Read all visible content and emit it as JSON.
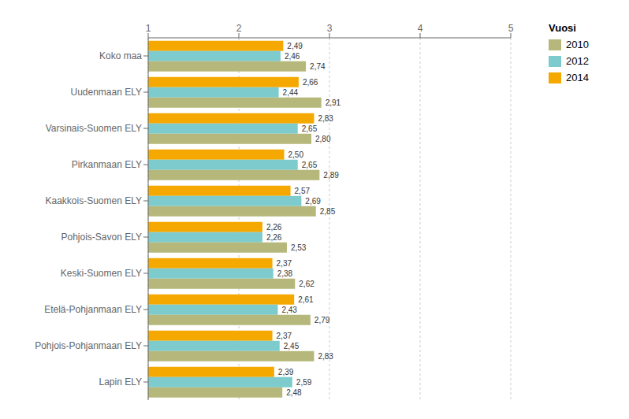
{
  "chart_data": {
    "type": "bar",
    "orientation": "horizontal",
    "categories": [
      "Koko maa",
      "Uudenmaan ELY",
      "Varsinais-Suomen ELY",
      "Pirkanmaan ELY",
      "Kaakkois-Suomen ELY",
      "Pohjois-Savon ELY",
      "Keski-Suomen ELY",
      "Etelä-Pohjanmaan ELY",
      "Pohjois-Pohjanmaan ELY",
      "Lapin ELY"
    ],
    "series": [
      {
        "name": "2010",
        "color": "#b5b87a",
        "values": [
          2.74,
          2.91,
          2.8,
          2.89,
          2.85,
          2.53,
          2.62,
          2.79,
          2.83,
          2.48
        ],
        "value_labels": [
          "2,74",
          "2,91",
          "2,80",
          "2,89",
          "2,85",
          "2,53",
          "2,62",
          "2,79",
          "2,83",
          "2,48"
        ]
      },
      {
        "name": "2012",
        "color": "#7ecbce",
        "values": [
          2.46,
          2.44,
          2.65,
          2.65,
          2.69,
          2.26,
          2.38,
          2.43,
          2.45,
          2.59
        ],
        "value_labels": [
          "2,46",
          "2,44",
          "2,65",
          "2,65",
          "2,69",
          "2,26",
          "2,38",
          "2,43",
          "2,45",
          "2,59"
        ]
      },
      {
        "name": "2014",
        "color": "#f5a800",
        "values": [
          2.49,
          2.66,
          2.83,
          2.5,
          2.57,
          2.26,
          2.37,
          2.61,
          2.37,
          2.39
        ],
        "value_labels": [
          "2,49",
          "2,66",
          "2,83",
          "2,50",
          "2,57",
          "2,26",
          "2,37",
          "2,61",
          "2,37",
          "2,39"
        ]
      }
    ],
    "xlim": [
      1,
      5
    ],
    "xticks": [
      1,
      2,
      3,
      4,
      5
    ],
    "grid": true,
    "data_labels": true,
    "legend": "right",
    "legend_title": "Vuosi"
  }
}
